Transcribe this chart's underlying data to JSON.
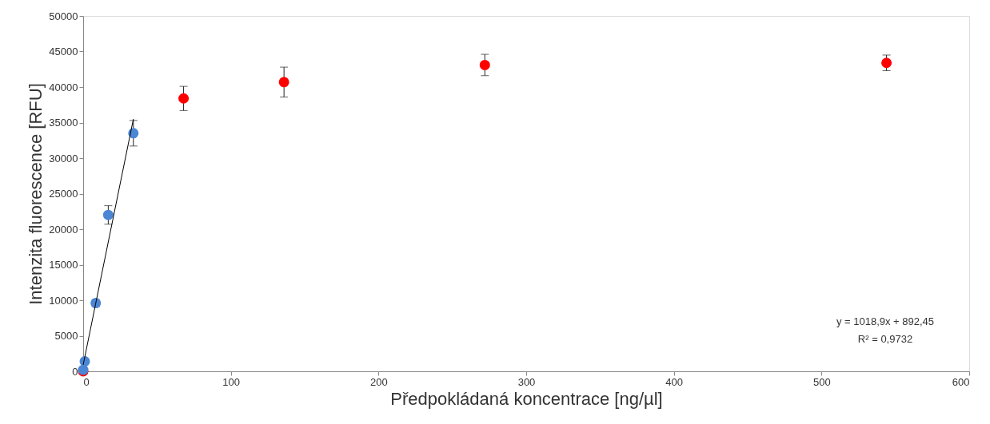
{
  "chart_data": {
    "type": "scatter",
    "xlabel": "Předpokládaná koncentrace [ng/µl]",
    "ylabel": "Intenzita fluorescence [RFU]",
    "xlim": [
      0,
      600
    ],
    "xticks": [
      0,
      100,
      200,
      300,
      400,
      500,
      600
    ],
    "ylim": [
      0,
      50000
    ],
    "yticks": [
      0,
      5000,
      10000,
      15000,
      20000,
      25000,
      30000,
      35000,
      40000,
      45000,
      50000
    ],
    "grid": false,
    "marker": "circle",
    "series": [
      {
        "color": "#ff0000",
        "x": [
          0,
          68,
          136,
          272,
          544
        ],
        "values": [
          0,
          38400,
          40700,
          43100,
          43400
        ],
        "errors": [
          null,
          1700,
          2100,
          1500,
          1100
        ]
      },
      {
        "color": "#4a86d4",
        "x": [
          0,
          1.1,
          8.5,
          17,
          34
        ],
        "values": [
          200,
          1400,
          9600,
          22000,
          33500
        ],
        "errors": [
          null,
          null,
          500,
          1300,
          1800
        ]
      },
      {
        "type": "line",
        "color": "#000000",
        "marker": "none",
        "line_style": "solid",
        "x": [
          0,
          34
        ],
        "values": [
          900,
          35500
        ]
      }
    ],
    "annotations": [
      "y = 1018,9x + 892,45",
      "R² = 0,9732"
    ]
  }
}
